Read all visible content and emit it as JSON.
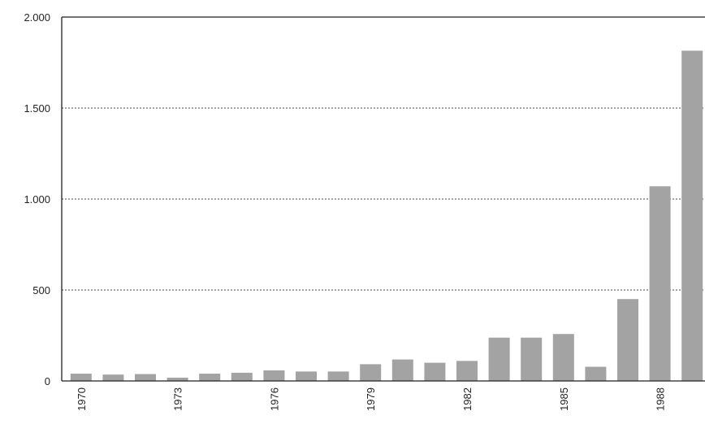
{
  "chart_data": {
    "type": "bar",
    "categories": [
      "1970",
      "1971",
      "1972",
      "1973",
      "1974",
      "1975",
      "1976",
      "1977",
      "1978",
      "1979",
      "1980",
      "1981",
      "1982",
      "1983",
      "1984",
      "1985",
      "1986",
      "1987",
      "1988",
      "1989"
    ],
    "x_tick_labels": [
      "1970",
      "1973",
      "1976",
      "1979",
      "1982",
      "1985",
      "1988"
    ],
    "values": [
      40,
      35,
      38,
      18,
      40,
      45,
      58,
      52,
      52,
      92,
      118,
      100,
      110,
      238,
      238,
      258,
      78,
      450,
      1070,
      1815
    ],
    "y_tick_labels": [
      "0",
      "500",
      "1.000",
      "1.500",
      "2.000"
    ],
    "y_ticks": [
      0,
      500,
      1000,
      1500,
      2000
    ],
    "ylim": [
      0,
      2000
    ],
    "title": "",
    "xlabel": "",
    "ylabel": "",
    "grid": "horizontal dashed at 500, 1000, 1500",
    "colors": {
      "bar": "#a3a3a3",
      "axis": "#222222",
      "grid": "#444444"
    }
  }
}
